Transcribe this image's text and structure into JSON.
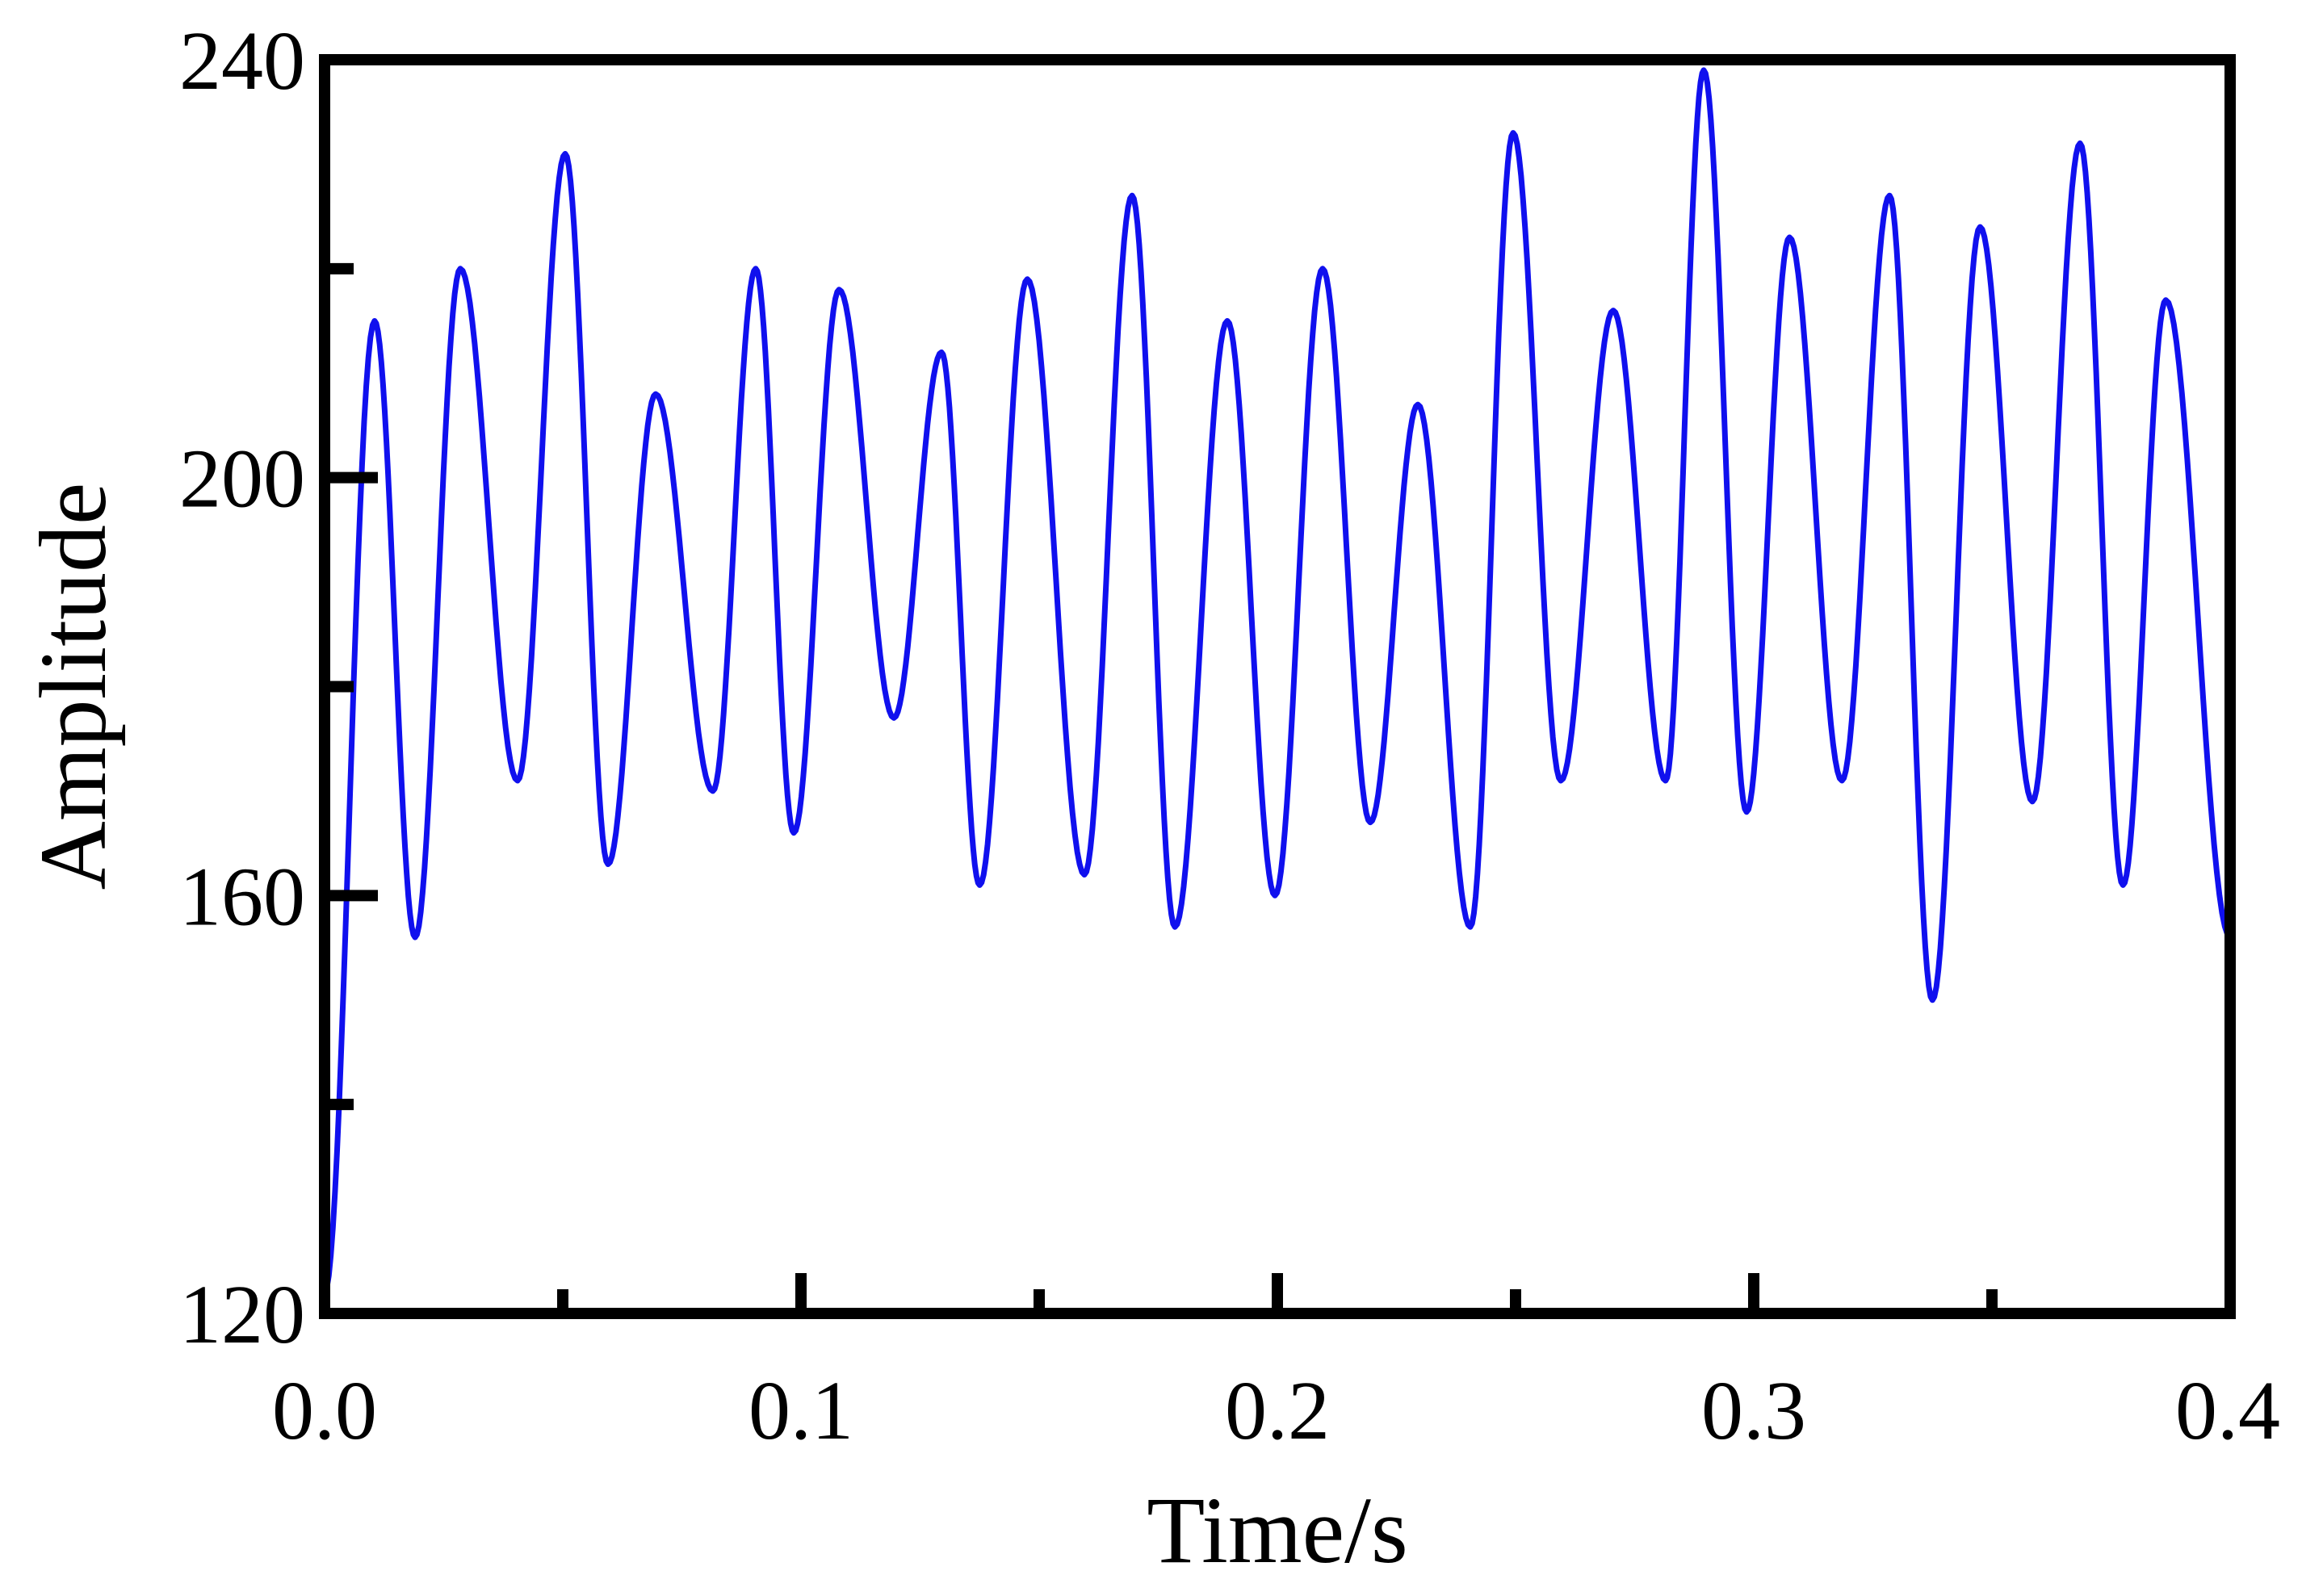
{
  "chart_data": {
    "type": "line",
    "title": "",
    "xlabel": "Time/s",
    "ylabel": "Amplitude",
    "xlim": [
      0.0,
      0.4
    ],
    "ylim": [
      120,
      240
    ],
    "xticks": [
      0.0,
      0.1,
      0.2,
      0.3,
      0.4
    ],
    "xtick_labels": [
      "0.0",
      "0.1",
      "0.2",
      "0.3",
      "0.4"
    ],
    "x_minor_ticks": [
      0.05,
      0.15,
      0.25,
      0.35
    ],
    "yticks": [
      120,
      160,
      200,
      240
    ],
    "ytick_labels": [
      "120",
      "160",
      "200",
      "240"
    ],
    "y_minor_ticks": [
      140,
      180,
      220
    ],
    "grid": false,
    "series": [
      {
        "color": "#1010ee",
        "extrema": [
          [
            0.0,
            122
          ],
          [
            0.0105,
            215
          ],
          [
            0.019,
            156
          ],
          [
            0.0285,
            220
          ],
          [
            0.0405,
            171
          ],
          [
            0.0505,
            231
          ],
          [
            0.0595,
            163
          ],
          [
            0.0695,
            208
          ],
          [
            0.0815,
            170
          ],
          [
            0.0905,
            220
          ],
          [
            0.0985,
            166
          ],
          [
            0.108,
            218
          ],
          [
            0.1195,
            177
          ],
          [
            0.1295,
            212
          ],
          [
            0.1375,
            161
          ],
          [
            0.1475,
            219
          ],
          [
            0.1595,
            162
          ],
          [
            0.1695,
            227
          ],
          [
            0.1785,
            157
          ],
          [
            0.1895,
            215
          ],
          [
            0.1995,
            160
          ],
          [
            0.2095,
            220
          ],
          [
            0.2195,
            167
          ],
          [
            0.2295,
            207
          ],
          [
            0.2405,
            157
          ],
          [
            0.2495,
            233
          ],
          [
            0.2595,
            171
          ],
          [
            0.2705,
            216
          ],
          [
            0.2815,
            171
          ],
          [
            0.2895,
            239
          ],
          [
            0.2985,
            168
          ],
          [
            0.3075,
            223
          ],
          [
            0.3185,
            171
          ],
          [
            0.3285,
            227
          ],
          [
            0.3375,
            150
          ],
          [
            0.3475,
            224
          ],
          [
            0.3585,
            169
          ],
          [
            0.3685,
            232
          ],
          [
            0.3775,
            161
          ],
          [
            0.3865,
            217
          ],
          [
            0.4,
            156
          ]
        ]
      }
    ]
  }
}
